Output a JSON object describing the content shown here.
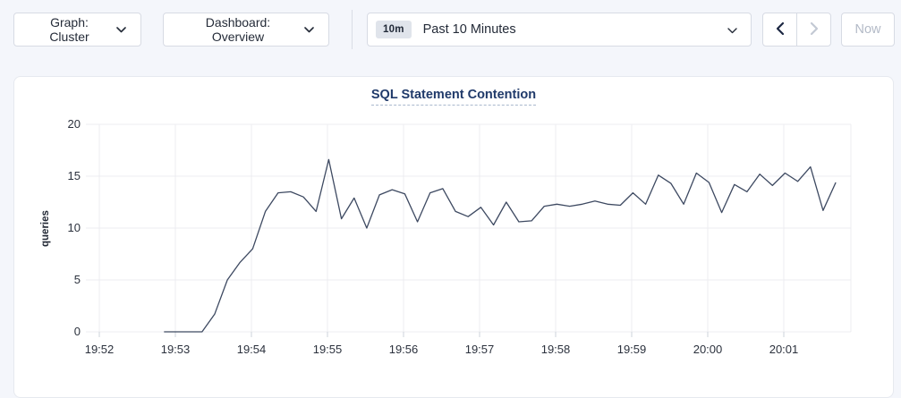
{
  "toolbar": {
    "graph_dropdown": {
      "label": "Graph: Cluster"
    },
    "dashboard_dropdown": {
      "label": "Dashboard: Overview"
    },
    "time_selector": {
      "badge": "10m",
      "label": "Past 10 Minutes"
    },
    "now_button": {
      "label": "Now"
    }
  },
  "colors": {
    "page_bg": "#f4f6fb",
    "panel_border": "#e6e9ef",
    "control_border": "#d7dbe4",
    "title": "#203a6a",
    "grid": "#ececf0",
    "line": "#3d4961",
    "disabled": "#b3bac7",
    "badge_bg": "#e0e4eb",
    "tick_text": "#2b313d"
  },
  "chart_data": {
    "type": "line",
    "title": "SQL Statement Contention",
    "xlabel": "",
    "ylabel": "queries",
    "ylim": [
      0,
      20
    ],
    "y_ticks": [
      0,
      5,
      10,
      15,
      20
    ],
    "x_tick_labels": [
      "19:52",
      "19:53",
      "19:54",
      "19:55",
      "19:56",
      "19:57",
      "19:58",
      "19:59",
      "20:00",
      "20:01"
    ],
    "grid": true,
    "legend": "none",
    "series": [
      {
        "name": "SQL Statement Contention",
        "color": "#3d4961",
        "start_offset_minutes": 0.85,
        "interval_seconds": 10,
        "values": [
          0,
          0,
          0,
          0,
          1.7,
          5.0,
          6.7,
          8.0,
          11.6,
          13.4,
          13.5,
          13.0,
          11.6,
          16.6,
          10.9,
          12.9,
          10.0,
          13.2,
          13.7,
          13.3,
          10.6,
          13.4,
          13.8,
          11.6,
          11.1,
          12.0,
          10.3,
          12.5,
          10.6,
          10.7,
          12.1,
          12.3,
          12.1,
          12.3,
          12.6,
          12.3,
          12.2,
          13.4,
          12.3,
          15.1,
          14.3,
          12.3,
          15.3,
          14.4,
          11.5,
          14.2,
          13.5,
          15.2,
          14.1,
          15.3,
          14.5,
          15.9,
          11.7,
          14.4
        ]
      }
    ]
  }
}
